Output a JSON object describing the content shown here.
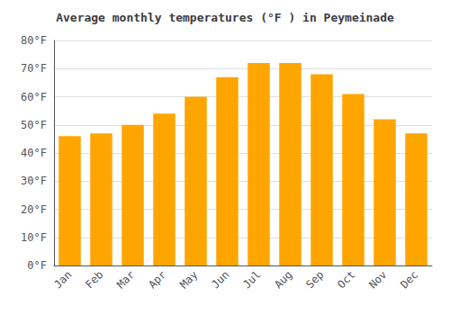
{
  "chart_data": {
    "type": "bar",
    "title": "Average monthly temperatures (°F ) in Peymeinade",
    "categories": [
      "Jan",
      "Feb",
      "Mar",
      "Apr",
      "May",
      "Jun",
      "Jul",
      "Aug",
      "Sep",
      "Oct",
      "Nov",
      "Dec"
    ],
    "values": [
      46,
      47,
      50,
      54,
      60,
      67,
      72,
      72,
      68,
      61,
      52,
      47
    ],
    "color": "#FFA500",
    "ylim": [
      0,
      80
    ],
    "yticks": [
      {
        "value": 0,
        "label": "0°F"
      },
      {
        "value": 10,
        "label": "10°F"
      },
      {
        "value": 20,
        "label": "20°F"
      },
      {
        "value": 30,
        "label": "30°F"
      },
      {
        "value": 40,
        "label": "40°F"
      },
      {
        "value": 50,
        "label": "50°F"
      },
      {
        "value": 60,
        "label": "60°F"
      },
      {
        "value": 70,
        "label": "70°F"
      },
      {
        "value": 80,
        "label": "80°F"
      }
    ],
    "grid": true
  }
}
